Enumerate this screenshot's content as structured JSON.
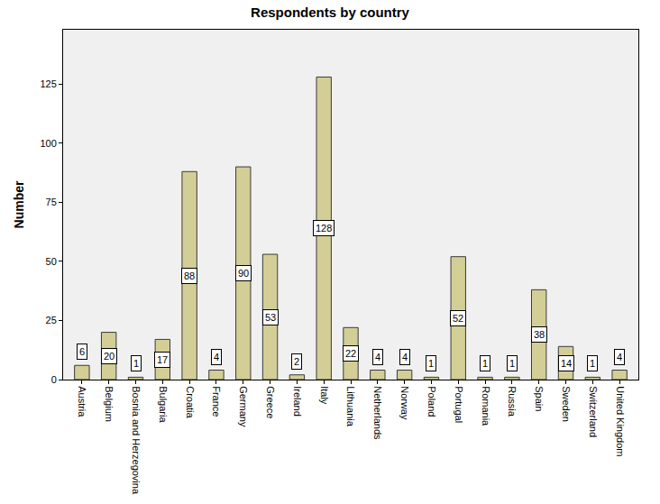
{
  "chart_data": {
    "type": "bar",
    "title": "Respondents by country",
    "y_label": "Number",
    "categories": [
      "Austria",
      "Belgium",
      "Bosnia and Herzegovina",
      "Bulgaria",
      "Croatia",
      "France",
      "Germany",
      "Greece",
      "Ireland",
      "Italy",
      "Lithuania",
      "Netherlands",
      "Norway",
      "Poland",
      "Portugal",
      "Romania",
      "Russia",
      "Spain",
      "Sweden",
      "Switzerland",
      "United Kingdom"
    ],
    "values": [
      6,
      20,
      1,
      17,
      88,
      4,
      90,
      53,
      2,
      128,
      22,
      4,
      4,
      1,
      52,
      1,
      1,
      38,
      14,
      1,
      4
    ],
    "color": "#d3ce96",
    "ylim": [
      0,
      148
    ],
    "yticks": [
      0,
      25,
      50,
      75,
      100,
      125
    ],
    "grid": false,
    "data_labels": true
  }
}
